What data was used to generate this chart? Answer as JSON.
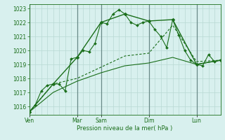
{
  "bg_color": "#d8f0ee",
  "grid_color": "#b8d8d4",
  "day_sep_color": "#6a8a88",
  "line_color": "#1a6e1a",
  "ylabel_values": [
    1016,
    1017,
    1018,
    1019,
    1020,
    1021,
    1022,
    1023
  ],
  "ylim": [
    1015.4,
    1023.3
  ],
  "xlabel": "Pression niveau de la mer( hPa )",
  "xtick_labels": [
    "Ven",
    "Mar",
    "Sam",
    "Dim",
    "Lun"
  ],
  "xtick_positions": [
    0,
    48,
    72,
    120,
    168
  ],
  "total_hours": 192,
  "series1_x": [
    0,
    6,
    12,
    18,
    24,
    30,
    36,
    42,
    48,
    54,
    60,
    66,
    72,
    78,
    84,
    90,
    96,
    102,
    108,
    114,
    120,
    126,
    132,
    138,
    144,
    150,
    156,
    162,
    168,
    174,
    180,
    186,
    192
  ],
  "series1_y": [
    1015.6,
    1016.1,
    1017.1,
    1017.5,
    1017.6,
    1017.6,
    1017.1,
    1019.4,
    1019.5,
    1020.0,
    1019.9,
    1020.5,
    1022.0,
    1021.9,
    1022.6,
    1022.9,
    1022.6,
    1022.0,
    1021.8,
    1022.0,
    1022.1,
    1021.5,
    1021.0,
    1020.2,
    1022.2,
    1021.1,
    1020.0,
    1019.3,
    1019.0,
    1018.9,
    1019.7,
    1019.2,
    1019.3
  ],
  "series2_x": [
    0,
    24,
    48,
    72,
    96,
    120,
    144,
    168,
    192
  ],
  "series2_y": [
    1015.6,
    1017.6,
    1019.5,
    1022.0,
    1022.6,
    1022.1,
    1022.2,
    1019.0,
    1019.3
  ],
  "series3_x": [
    0,
    24,
    48,
    72,
    96,
    120,
    144,
    168,
    192
  ],
  "series3_y": [
    1015.6,
    1017.6,
    1018.0,
    1018.8,
    1019.6,
    1019.8,
    1021.8,
    1019.2,
    1019.3
  ],
  "series4_x": [
    0,
    24,
    48,
    72,
    96,
    120,
    144,
    168,
    192
  ],
  "series4_y": [
    1015.6,
    1017.0,
    1017.8,
    1018.4,
    1018.9,
    1019.1,
    1019.5,
    1019.0,
    1019.3
  ],
  "minor_xtick_step": 6,
  "figsize": [
    3.2,
    2.0
  ],
  "dpi": 100
}
